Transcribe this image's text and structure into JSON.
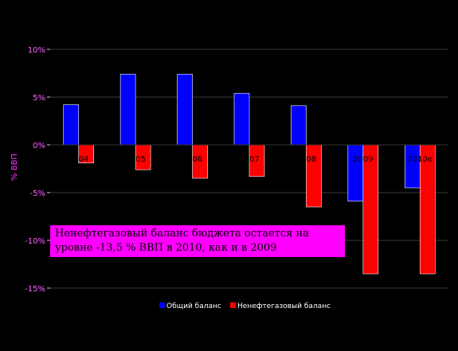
{
  "chart_data": {
    "type": "bar",
    "ylabel": "% ВВП",
    "ylim": [
      -15,
      10
    ],
    "y_ticks": [
      {
        "value": 10,
        "label": "10%"
      },
      {
        "value": 5,
        "label": "5%"
      },
      {
        "value": 0,
        "label": "0%"
      },
      {
        "value": -5,
        "label": "-5%"
      },
      {
        "value": -10,
        "label": "-10%"
      },
      {
        "value": -15,
        "label": "-15%"
      }
    ],
    "categories": [
      "2004",
      "2005",
      "2006",
      "2007",
      "2008",
      "2009",
      "2010е"
    ],
    "series": [
      {
        "name": "Общий баланс",
        "color": "#0000ff",
        "values": [
          4.2,
          7.4,
          7.4,
          5.4,
          4.1,
          -5.9,
          -4.5
        ]
      },
      {
        "name": "Ненефтегазовый баланс",
        "color": "#ff0000",
        "values": [
          -1.9,
          -2.6,
          -3.5,
          -3.3,
          -6.5,
          -13.5,
          -13.5
        ]
      }
    ],
    "grid": "horizontal",
    "legend_position": "bottom",
    "annotation": "Ненефтегазовый баланс бюджета остается на уровне -13,5 % ВВП в 2010, как и в 2009"
  }
}
